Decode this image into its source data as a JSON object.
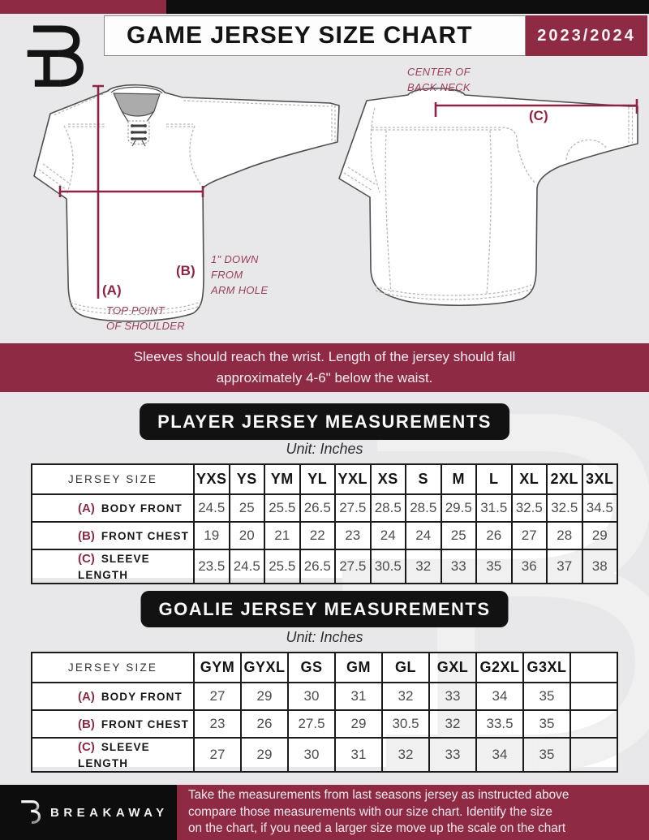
{
  "colors": {
    "maroon": "#8E2A44",
    "line_maroon": "#8E2443",
    "black": "#111111",
    "background": "#E8E8EA"
  },
  "header": {
    "title": "GAME JERSEY SIZE CHART",
    "season": "2023/2024"
  },
  "diagram": {
    "front": {
      "a_key": "(A)",
      "a_note": "TOP POINT\nOF SHOULDER",
      "b_key": "(B)",
      "b_note": "1\" DOWN\nFROM\nARM HOLE"
    },
    "back": {
      "c_key": "(C)",
      "c_note": "CENTER OF\nBACK NECK"
    }
  },
  "notice": "Sleeves should reach the wrist. Length of the jersey should fall\napproximately 4-6\" below the waist.",
  "player_table": {
    "title": "PLAYER JERSEY MEASUREMENTS",
    "unit": "Unit: Inches",
    "header": [
      "JERSEY SIZE",
      "YXS",
      "YS",
      "YM",
      "YL",
      "YXL",
      "XS",
      "S",
      "M",
      "L",
      "XL",
      "2XL",
      "3XL"
    ],
    "rows": [
      {
        "key": "(A)",
        "label": "BODY FRONT",
        "values": [
          "24.5",
          "25",
          "25.5",
          "26.5",
          "27.5",
          "28.5",
          "28.5",
          "29.5",
          "31.5",
          "32.5",
          "32.5",
          "34.5"
        ]
      },
      {
        "key": "(B)",
        "label": "FRONT CHEST",
        "values": [
          "19",
          "20",
          "21",
          "22",
          "23",
          "24",
          "24",
          "25",
          "26",
          "27",
          "28",
          "29"
        ]
      },
      {
        "key": "(C)",
        "label": "SLEEVE LENGTH",
        "values": [
          "23.5",
          "24.5",
          "25.5",
          "26.5",
          "27.5",
          "30.5",
          "32",
          "33",
          "35",
          "36",
          "37",
          "38"
        ]
      }
    ]
  },
  "goalie_table": {
    "title": "GOALIE JERSEY MEASUREMENTS",
    "unit": "Unit: Inches",
    "header": [
      "JERSEY SIZE",
      "GYM",
      "GYXL",
      "GS",
      "GM",
      "GL",
      "GXL",
      "G2XL",
      "G3XL",
      ""
    ],
    "rows": [
      {
        "key": "(A)",
        "label": "BODY FRONT",
        "values": [
          "27",
          "29",
          "30",
          "31",
          "32",
          "33",
          "34",
          "35",
          ""
        ]
      },
      {
        "key": "(B)",
        "label": "FRONT CHEST",
        "values": [
          "23",
          "26",
          "27.5",
          "29",
          "30.5",
          "32",
          "33.5",
          "35",
          ""
        ]
      },
      {
        "key": "(C)",
        "label": "SLEEVE LENGTH",
        "values": [
          "27",
          "29",
          "30",
          "31",
          "32",
          "33",
          "34",
          "35",
          ""
        ]
      }
    ]
  },
  "footer": {
    "brand": "BREAKAWAY",
    "note": "Take the measurements from last seasons jersey as instructed above\ncompare those measurements  with our size chart. Identify the size\non the chart, if you need a larger size move up the scale on the chart"
  }
}
